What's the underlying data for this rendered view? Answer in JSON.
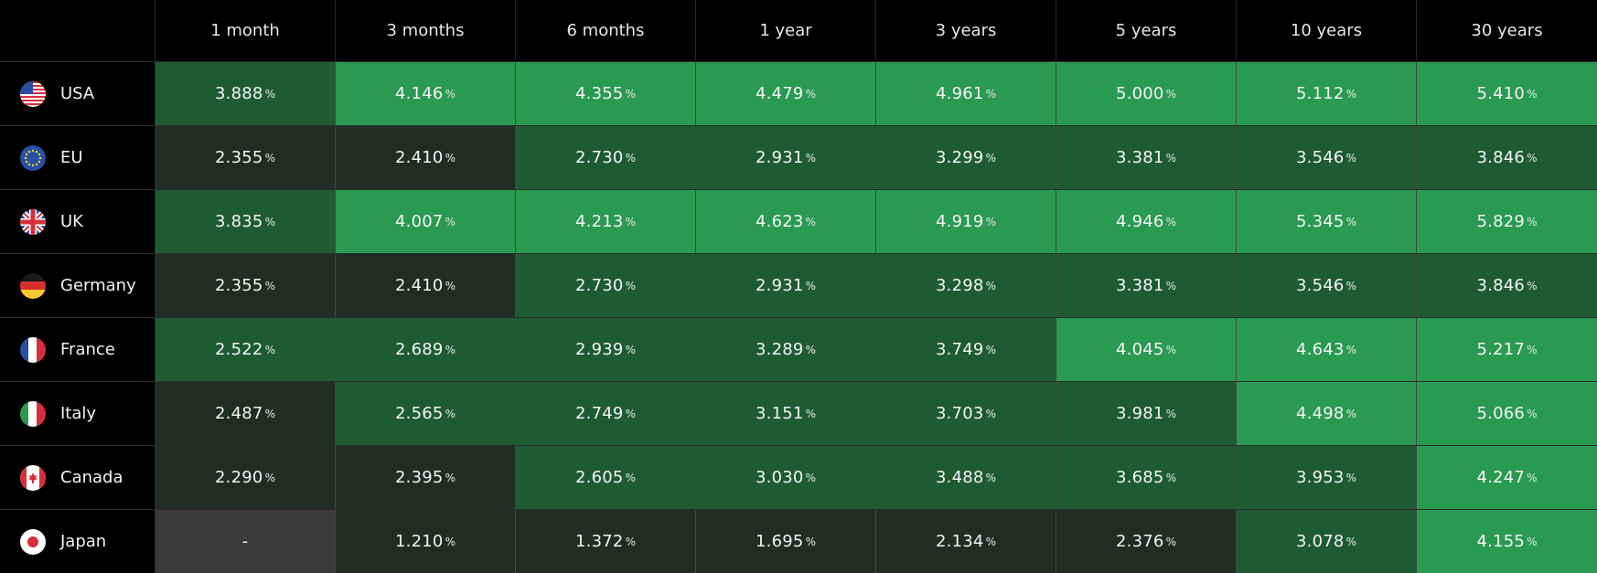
{
  "columns": [
    "1 month",
    "3 months",
    "6 months",
    "1 year",
    "3 years",
    "5 years",
    "10 years",
    "30 years"
  ],
  "percent_symbol": "%",
  "colors": {
    "l0": "#3a3a3a",
    "l1": "#1f2d25",
    "l2": "#1e5b33",
    "l3": "#2a9a52"
  },
  "rows": [
    {
      "country": "USA",
      "flag": "usa-flag-icon",
      "values": [
        "3.888",
        "4.146",
        "4.355",
        "4.479",
        "4.961",
        "5.000",
        "5.112",
        "5.410"
      ],
      "levels": [
        "l2",
        "l3",
        "l3",
        "l3",
        "l3",
        "l3",
        "l3",
        "l3"
      ]
    },
    {
      "country": "EU",
      "flag": "eu-flag-icon",
      "values": [
        "2.355",
        "2.410",
        "2.730",
        "2.931",
        "3.299",
        "3.381",
        "3.546",
        "3.846"
      ],
      "levels": [
        "l1",
        "l1",
        "l2",
        "l2",
        "l2",
        "l2",
        "l2",
        "l2"
      ]
    },
    {
      "country": "UK",
      "flag": "uk-flag-icon",
      "values": [
        "3.835",
        "4.007",
        "4.213",
        "4.623",
        "4.919",
        "4.946",
        "5.345",
        "5.829"
      ],
      "levels": [
        "l2",
        "l3",
        "l3",
        "l3",
        "l3",
        "l3",
        "l3",
        "l3"
      ]
    },
    {
      "country": "Germany",
      "flag": "germany-flag-icon",
      "values": [
        "2.355",
        "2.410",
        "2.730",
        "2.931",
        "3.298",
        "3.381",
        "3.546",
        "3.846"
      ],
      "levels": [
        "l1",
        "l1",
        "l2",
        "l2",
        "l2",
        "l2",
        "l2",
        "l2"
      ]
    },
    {
      "country": "France",
      "flag": "france-flag-icon",
      "values": [
        "2.522",
        "2.689",
        "2.939",
        "3.289",
        "3.749",
        "4.045",
        "4.643",
        "5.217"
      ],
      "levels": [
        "l2",
        "l2",
        "l2",
        "l2",
        "l2",
        "l3",
        "l3",
        "l3"
      ]
    },
    {
      "country": "Italy",
      "flag": "italy-flag-icon",
      "values": [
        "2.487",
        "2.565",
        "2.749",
        "3.151",
        "3.703",
        "3.981",
        "4.498",
        "5.066"
      ],
      "levels": [
        "l1",
        "l2",
        "l2",
        "l2",
        "l2",
        "l2",
        "l3",
        "l3"
      ]
    },
    {
      "country": "Canada",
      "flag": "canada-flag-icon",
      "values": [
        "2.290",
        "2.395",
        "2.605",
        "3.030",
        "3.488",
        "3.685",
        "3.953",
        "4.247"
      ],
      "levels": [
        "l1",
        "l1",
        "l2",
        "l2",
        "l2",
        "l2",
        "l2",
        "l3"
      ]
    },
    {
      "country": "Japan",
      "flag": "japan-flag-icon",
      "values": [
        "-",
        "1.210",
        "1.372",
        "1.695",
        "2.134",
        "2.376",
        "3.078",
        "4.155"
      ],
      "levels": [
        "l0",
        "l1",
        "l1",
        "l1",
        "l1",
        "l1",
        "l2",
        "l3"
      ]
    }
  ]
}
